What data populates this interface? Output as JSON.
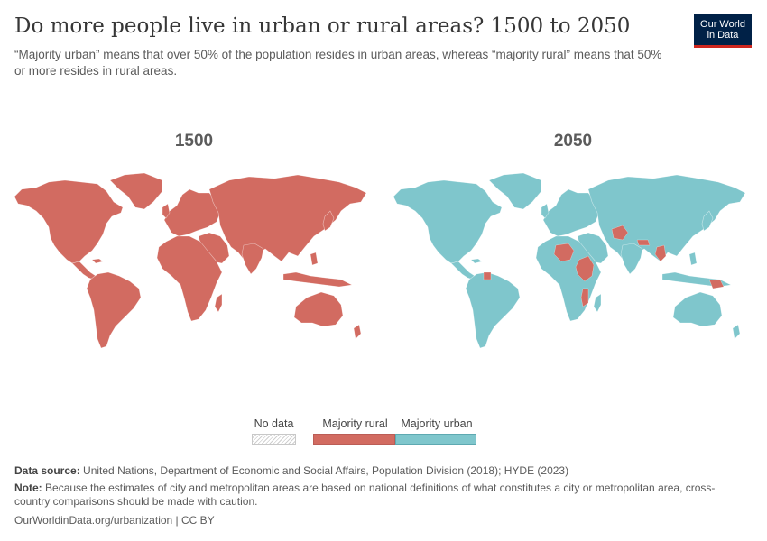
{
  "header": {
    "title": "Do more people live in urban or rural areas? 1500 to 2050",
    "subtitle": "“Majority urban” means that over 50% of the population resides in urban areas, whereas “majority rural” means that 50% or more resides in rural areas."
  },
  "logo": {
    "line1": "Our World",
    "line2": "in Data"
  },
  "maps": [
    {
      "year": "1500",
      "fill": "#d26b61"
    },
    {
      "year": "2050",
      "fill": "#7fc6cc",
      "rural_exceptions_color": "#d26b61"
    }
  ],
  "legend": {
    "no_data": "No data",
    "rural": "Majority rural",
    "urban": "Majority urban",
    "colors": {
      "rural": "#d26b61",
      "urban": "#7fc6cc",
      "no_data": "#e8e8e8"
    }
  },
  "footer": {
    "source_label": "Data source:",
    "source_text": "United Nations, Department of Economic and Social Affairs, Population Division (2018); HYDE (2023)",
    "note_label": "Note:",
    "note_text": "Because the estimates of city and metropolitan areas are based on national definitions of what constitutes a city or metropolitan area, cross-country comparisons should be made with caution.",
    "url": "OurWorldinData.org/urbanization | CC BY"
  }
}
